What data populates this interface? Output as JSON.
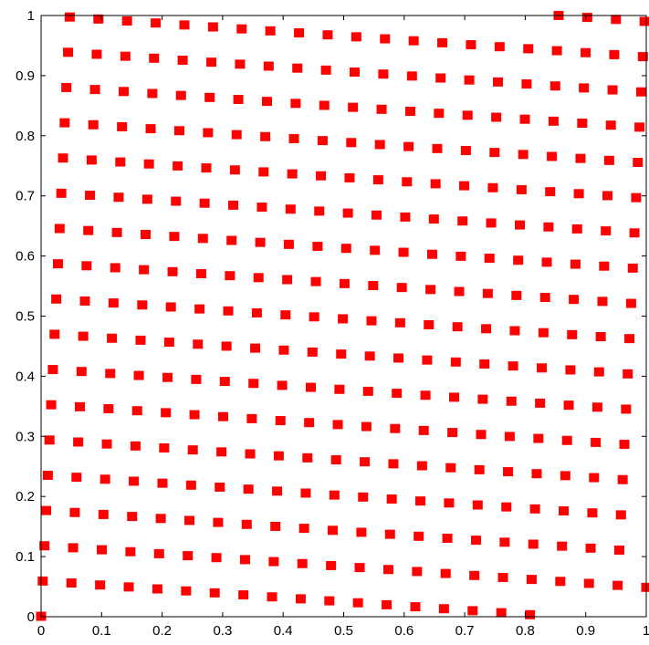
{
  "chart_data": {
    "type": "scatter",
    "title": "",
    "xlabel": "",
    "ylabel": "",
    "xlim": [
      0,
      1
    ],
    "ylim": [
      0,
      1
    ],
    "x_ticks": [
      "0",
      "0.1",
      "0.2",
      "0.3",
      "0.4",
      "0.5",
      "0.6",
      "0.7",
      "0.8",
      "0.9",
      "1"
    ],
    "y_ticks": [
      "0",
      "0.1",
      "0.2",
      "0.3",
      "0.4",
      "0.5",
      "0.6",
      "0.7",
      "0.8",
      "0.9",
      "1"
    ],
    "grid": false,
    "legend": "none",
    "marker": "square",
    "marker_color": "#ff0000",
    "points": {
      "construction": "x = i/(N-1), y = frac(0.9441 * x + 0.0560 * i)",
      "N": 360,
      "note_visible": "Points form parallel diagonal bands of red square markers covering the full unit square."
    }
  }
}
